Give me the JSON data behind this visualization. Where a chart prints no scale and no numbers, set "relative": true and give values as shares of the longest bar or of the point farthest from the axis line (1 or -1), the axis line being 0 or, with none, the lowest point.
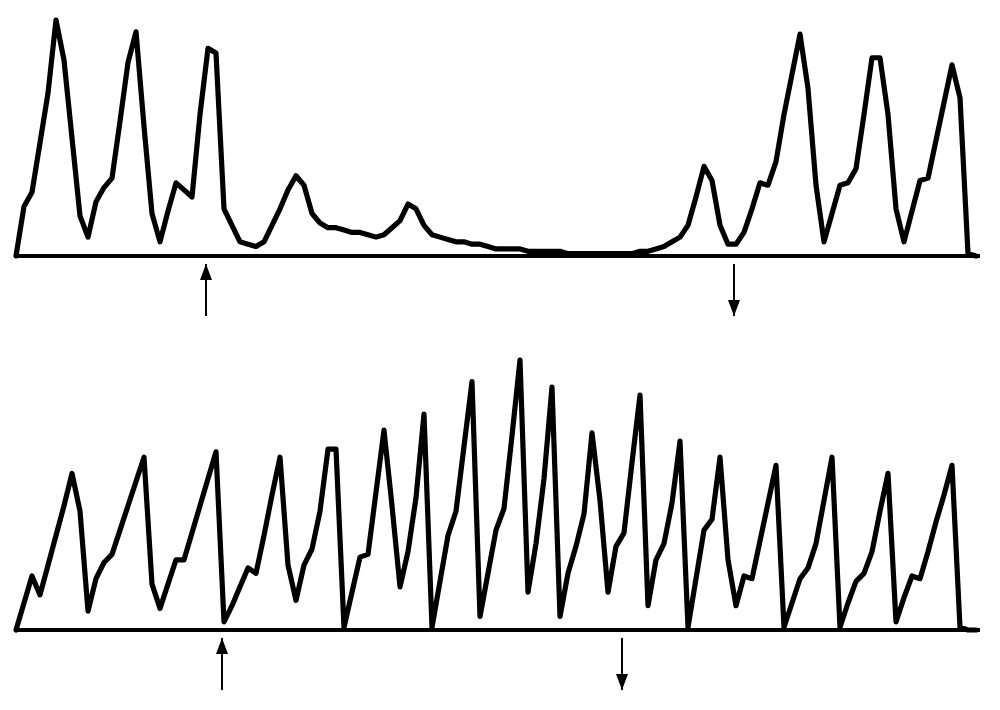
{
  "chart_data": [
    {
      "type": "line",
      "relative": true,
      "categories": [
        null,
        null,
        null,
        null,
        null,
        null,
        null,
        null,
        null,
        null,
        null,
        null,
        null,
        null,
        null,
        null,
        null,
        null,
        null,
        null,
        null,
        null,
        null,
        null,
        null,
        null,
        null,
        null,
        null,
        null,
        null,
        null,
        null,
        null,
        null,
        null,
        null,
        null,
        null,
        null,
        null,
        null,
        null,
        null,
        null,
        null,
        null,
        null,
        null,
        null,
        null,
        null,
        null,
        null,
        null,
        null,
        null,
        null,
        null,
        null,
        null,
        null,
        null,
        null,
        null,
        null,
        null,
        null,
        null,
        null,
        null,
        null,
        null,
        null,
        null,
        null,
        null,
        null,
        null,
        null,
        null,
        null,
        null,
        null,
        null,
        null,
        null,
        null,
        null,
        null,
        null,
        null,
        null,
        null,
        null,
        null,
        null,
        null,
        null,
        null,
        null,
        null,
        null,
        null,
        null,
        null,
        null,
        null,
        null,
        null,
        null,
        null,
        null,
        null,
        null,
        null,
        null,
        null,
        null,
        null,
        null
      ],
      "series": [
        {
          "color": "#000000",
          "values": [
            0,
            0.21,
            0.27,
            0.48,
            0.69,
            1,
            0.83,
            0.5,
            0.17,
            0.08,
            0.23,
            0.29,
            0.33,
            0.57,
            0.82,
            0.95,
            0.55,
            0.18,
            0.06,
            0.19,
            0.31,
            0.28,
            0.25,
            0.6,
            0.88,
            0.86,
            0.2,
            0.13,
            0.06,
            0.05,
            0.04,
            0.06,
            0.13,
            0.2,
            0.28,
            0.34,
            0.3,
            0.18,
            0.14,
            0.12,
            0.12,
            0.11,
            0.1,
            0.1,
            0.09,
            0.08,
            0.09,
            0.12,
            0.15,
            0.22,
            0.2,
            0.13,
            0.09,
            0.08,
            0.07,
            0.06,
            0.06,
            0.05,
            0.05,
            0.04,
            0.03,
            0.03,
            0.03,
            0.03,
            0.02,
            0.02,
            0.02,
            0.02,
            0.02,
            0.01,
            0.01,
            0.01,
            0.01,
            0.01,
            0.01,
            0.01,
            0.01,
            0.01,
            0.02,
            0.02,
            0.03,
            0.04,
            0.06,
            0.08,
            0.13,
            0.25,
            0.38,
            0.32,
            0.13,
            0.05,
            0.05,
            0.1,
            0.2,
            0.31,
            0.3,
            0.4,
            0.6,
            0.77,
            0.94,
            0.71,
            0.3,
            0.06,
            0.18,
            0.3,
            0.31,
            0.37,
            0.6,
            0.84,
            0.84,
            0.6,
            0.2,
            0.06,
            0.19,
            0.32,
            0.33,
            0.49,
            0.65,
            0.81,
            0.67,
            0.01,
            0
          ]
        }
      ]
    },
    {
      "type": "line",
      "relative": true,
      "categories": [
        null,
        null,
        null,
        null,
        null,
        null,
        null,
        null,
        null,
        null,
        null,
        null,
        null,
        null,
        null,
        null,
        null,
        null,
        null,
        null,
        null,
        null,
        null,
        null,
        null,
        null,
        null,
        null,
        null,
        null,
        null,
        null,
        null,
        null,
        null,
        null,
        null,
        null,
        null,
        null,
        null,
        null,
        null,
        null,
        null,
        null,
        null,
        null,
        null,
        null,
        null,
        null,
        null,
        null,
        null,
        null,
        null,
        null,
        null,
        null,
        null,
        null,
        null,
        null,
        null,
        null,
        null,
        null,
        null,
        null,
        null,
        null,
        null,
        null,
        null,
        null,
        null,
        null,
        null,
        null,
        null,
        null,
        null,
        null,
        null,
        null,
        null,
        null,
        null,
        null,
        null,
        null,
        null,
        null,
        null,
        null,
        null,
        null,
        null,
        null,
        null,
        null,
        null,
        null,
        null,
        null,
        null,
        null,
        null,
        null,
        null,
        null,
        null,
        null,
        null,
        null,
        null,
        null,
        null,
        null,
        null
      ],
      "series": [
        {
          "color": "#000000",
          "values": [
            0,
            0.1,
            0.2,
            0.13,
            0.24,
            0.35,
            0.46,
            0.58,
            0.44,
            0.07,
            0.19,
            0.25,
            0.28,
            0.37,
            0.46,
            0.55,
            0.64,
            0.17,
            0.08,
            0.17,
            0.26,
            0.26,
            0.36,
            0.46,
            0.56,
            0.66,
            0.03,
            0.09,
            0.16,
            0.23,
            0.21,
            0.35,
            0.5,
            0.64,
            0.24,
            0.11,
            0.24,
            0.3,
            0.44,
            0.67,
            0.67,
            0.01,
            0.14,
            0.27,
            0.28,
            0.51,
            0.74,
            0.46,
            0.16,
            0.29,
            0.49,
            0.8,
            0.01,
            0.18,
            0.35,
            0.44,
            0.68,
            0.92,
            0.05,
            0.21,
            0.37,
            0.45,
            0.72,
            1,
            0.14,
            0.32,
            0.56,
            0.9,
            0.05,
            0.21,
            0.31,
            0.43,
            0.73,
            0.48,
            0.14,
            0.31,
            0.36,
            0.62,
            0.87,
            0.09,
            0.26,
            0.32,
            0.47,
            0.7,
            0.01,
            0.19,
            0.37,
            0.41,
            0.64,
            0.26,
            0.09,
            0.2,
            0.19,
            0.33,
            0.47,
            0.61,
            0.01,
            0.1,
            0.19,
            0.23,
            0.32,
            0.48,
            0.64,
            0.01,
            0.1,
            0.18,
            0.21,
            0.29,
            0.44,
            0.58,
            0.03,
            0.12,
            0.2,
            0.19,
            0.29,
            0.4,
            0.5,
            0.61,
            0.01,
            0,
            0
          ]
        }
      ]
    }
  ]
}
